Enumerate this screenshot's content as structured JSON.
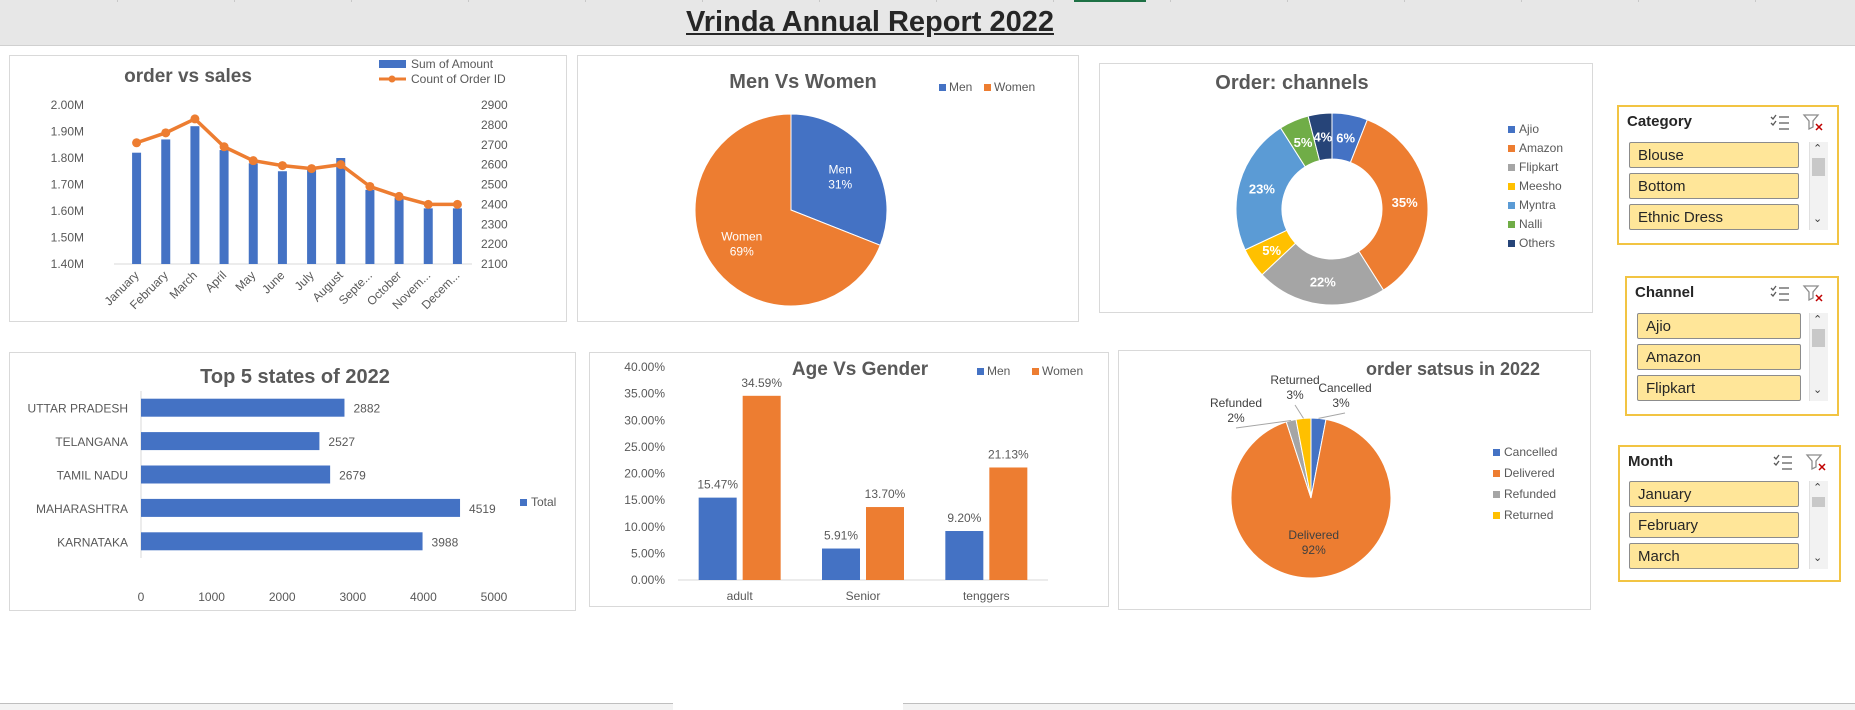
{
  "report": {
    "title": "Vrinda Annual Report 2022"
  },
  "colors": {
    "blue": "#4472c4",
    "orange": "#ed7d31",
    "gray": "#a5a5a5",
    "yellow": "#ffc000",
    "lightblue": "#5b9bd5",
    "green": "#70ad47",
    "navy": "#264478",
    "slicer_border": "#f2c443",
    "slicer_item": "#ffe699"
  },
  "chart_data": [
    {
      "type": "bar",
      "title": "order vs sales",
      "categories": [
        "January",
        "February",
        "March",
        "April",
        "May",
        "June",
        "July",
        "August",
        "Septe...",
        "October",
        "Novem...",
        "Decem..."
      ],
      "series": [
        {
          "name": "Sum of Amount",
          "type": "bar",
          "axis": "left",
          "values": [
            1.82,
            1.87,
            1.92,
            1.83,
            1.78,
            1.75,
            1.76,
            1.8,
            1.68,
            1.65,
            1.61,
            1.61
          ]
        },
        {
          "name": "Count of Order ID",
          "type": "line",
          "axis": "right",
          "values": [
            2710,
            2760,
            2830,
            2690,
            2620,
            2595,
            2580,
            2600,
            2490,
            2440,
            2400,
            2400
          ]
        }
      ],
      "y_left": {
        "ticks": [
          "2.00M",
          "1.90M",
          "1.80M",
          "1.70M",
          "1.60M",
          "1.50M",
          "1.40M"
        ],
        "ylim": [
          1.4,
          2.0
        ]
      },
      "y_right": {
        "ticks": [
          "2900",
          "2800",
          "2700",
          "2600",
          "2500",
          "2400",
          "2300",
          "2200",
          "2100"
        ],
        "ylim": [
          2100,
          2900
        ]
      },
      "legend": "top-right",
      "grid": false
    },
    {
      "type": "pie",
      "title": "Men Vs Women",
      "slices": [
        {
          "name": "Men",
          "value": 31,
          "label": "31%"
        },
        {
          "name": "Women",
          "value": 69,
          "label": "69%"
        }
      ],
      "legend": "top-right"
    },
    {
      "type": "pie",
      "subtype": "donut",
      "title": "Order: channels",
      "slices": [
        {
          "name": "Ajio",
          "value": 6,
          "label": "6%"
        },
        {
          "name": "Amazon",
          "value": 35,
          "label": "35%"
        },
        {
          "name": "Flipkart",
          "value": 22,
          "label": "22%"
        },
        {
          "name": "Meesho",
          "value": 5,
          "label": "5%"
        },
        {
          "name": "Myntra",
          "value": 23,
          "label": "23%"
        },
        {
          "name": "Nalli",
          "value": 5,
          "label": "5%"
        },
        {
          "name": "Others",
          "value": 4,
          "label": "4%"
        }
      ],
      "legend": "right"
    },
    {
      "type": "bar",
      "orientation": "horizontal",
      "title": "Top 5 states of 2022",
      "categories": [
        "UTTAR PRADESH",
        "TELANGANA",
        "TAMIL NADU",
        "MAHARASHTRA",
        "KARNATAKA"
      ],
      "series": [
        {
          "name": "Total",
          "values": [
            2882,
            2527,
            2679,
            4519,
            3988
          ]
        }
      ],
      "x_ticks": [
        "0",
        "1000",
        "2000",
        "3000",
        "4000",
        "5000"
      ],
      "xlim": [
        0,
        5000
      ],
      "legend": "right"
    },
    {
      "type": "bar",
      "title": "Age Vs Gender",
      "categories": [
        "adult",
        "Senior",
        "tenggers"
      ],
      "series": [
        {
          "name": "Men",
          "values": [
            15.47,
            5.91,
            9.2
          ],
          "labels": [
            "15.47%",
            "5.91%",
            "9.20%"
          ]
        },
        {
          "name": "Women",
          "values": [
            34.59,
            13.7,
            21.13
          ],
          "labels": [
            "34.59%",
            "13.70%",
            "21.13%"
          ]
        }
      ],
      "y_ticks": [
        "40.00%",
        "35.00%",
        "30.00%",
        "25.00%",
        "20.00%",
        "15.00%",
        "10.00%",
        "5.00%",
        "0.00%"
      ],
      "ylim": [
        0,
        40
      ],
      "legend": "top-right"
    },
    {
      "type": "pie",
      "title": "order satsus in 2022",
      "slices": [
        {
          "name": "Cancelled",
          "value": 3,
          "label": "3%"
        },
        {
          "name": "Delivered",
          "value": 92,
          "label": "92%"
        },
        {
          "name": "Refunded",
          "value": 2,
          "label": "2%"
        },
        {
          "name": "Returned",
          "value": 3,
          "label": "3%"
        }
      ],
      "legend": "right"
    }
  ],
  "slicers": [
    {
      "title": "Category",
      "items": [
        "Blouse",
        "Bottom",
        "Ethnic Dress"
      ]
    },
    {
      "title": "Channel",
      "items": [
        "Ajio",
        "Amazon",
        "Flipkart"
      ]
    },
    {
      "title": "Month",
      "items": [
        "January",
        "February",
        "March"
      ]
    }
  ],
  "icons": {
    "multiselect": "multi-select-icon",
    "clear_filter": "clear-filter-icon",
    "scroll_up": "scroll-up-icon",
    "scroll_down": "scroll-down-icon"
  }
}
